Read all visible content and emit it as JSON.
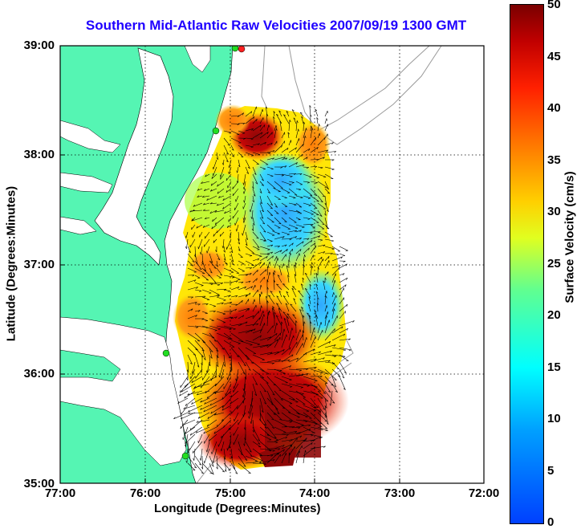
{
  "title": "Southern Mid-Atlantic Raw Velocities 2007/09/19 1300 GMT",
  "axes": {
    "xlabel": "Longitude (Degrees:Minutes)",
    "ylabel": "Latitude (Degrees:Minutes)",
    "x_ticks": [
      "77:00",
      "76:00",
      "75:00",
      "74:00",
      "73:00",
      "72:00"
    ],
    "y_ticks": [
      "39:00",
      "38:00",
      "37:00",
      "36:00",
      "35:00"
    ],
    "x_range": [
      -77,
      -72
    ],
    "y_range": [
      35,
      39
    ]
  },
  "colorbar": {
    "label": "Surface Velocity (cm/s)",
    "ticks": [
      "50",
      "45",
      "40",
      "35",
      "30",
      "25",
      "20",
      "15",
      "10",
      "5",
      "0"
    ],
    "range": [
      0,
      50
    ],
    "colormap": "jet"
  },
  "colors": {
    "land": "#55f5b3",
    "water": "#ffffff",
    "title": "#1f00ff",
    "grid": "#000000",
    "bathymetry": "#999999",
    "station": "#22dd22",
    "station_alt": "#ff2020"
  }
}
